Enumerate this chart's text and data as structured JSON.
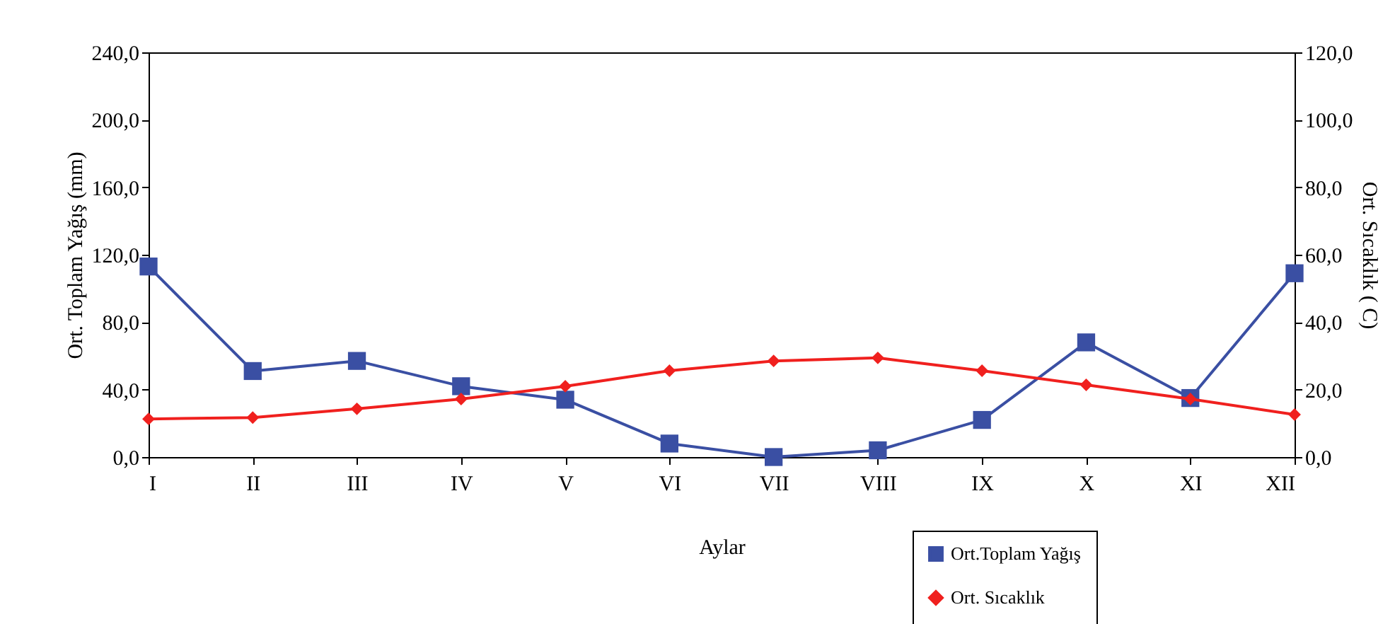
{
  "chart_data": {
    "type": "line",
    "xlabel": "Aylar",
    "ylabel": "Ort. Toplam Yağış (mm)",
    "y2label": "Ort. Sıcaklık ( C)",
    "categories": [
      "I",
      "II",
      "III",
      "IV",
      "V",
      "VI",
      "VII",
      "VIII",
      "IX",
      "X",
      "XI",
      "XII"
    ],
    "series": [
      {
        "name": "Ort.Toplam Yağış",
        "color": "#3a4fa3",
        "marker": "square",
        "values": [
          113,
          51,
          57,
          42,
          34,
          8,
          0,
          4,
          22,
          68,
          35,
          109
        ]
      },
      {
        "name": "Ort. Sıcaklık",
        "color": "#f0201e",
        "marker": "diamond",
        "axis": "y2",
        "values": [
          11.3,
          11.7,
          14.3,
          17.2,
          21,
          25.6,
          28.5,
          29.4,
          25.6,
          21.4,
          17.2,
          12.6
        ]
      }
    ],
    "ylim": [
      0,
      240
    ],
    "yticks": [
      {
        "value": 0,
        "label": "0,0"
      },
      {
        "value": 40,
        "label": "40,0"
      },
      {
        "value": 80,
        "label": "80,0"
      },
      {
        "value": 120,
        "label": "120,0"
      },
      {
        "value": 160,
        "label": "160,0"
      },
      {
        "value": 200,
        "label": "200,0"
      },
      {
        "value": 240,
        "label": "240,0"
      }
    ],
    "y2lim": [
      0,
      120
    ],
    "y2ticks": [
      {
        "value": 0,
        "label": "0,0"
      },
      {
        "value": 20,
        "label": "20,0"
      },
      {
        "value": 40,
        "label": "40,0"
      },
      {
        "value": 60,
        "label": "60,0"
      },
      {
        "value": 80,
        "label": "80,0"
      },
      {
        "value": 100,
        "label": "100,0"
      },
      {
        "value": 120,
        "label": "120,0"
      }
    ],
    "grid": false,
    "legend": "bottom right",
    "line_style": "solid"
  }
}
